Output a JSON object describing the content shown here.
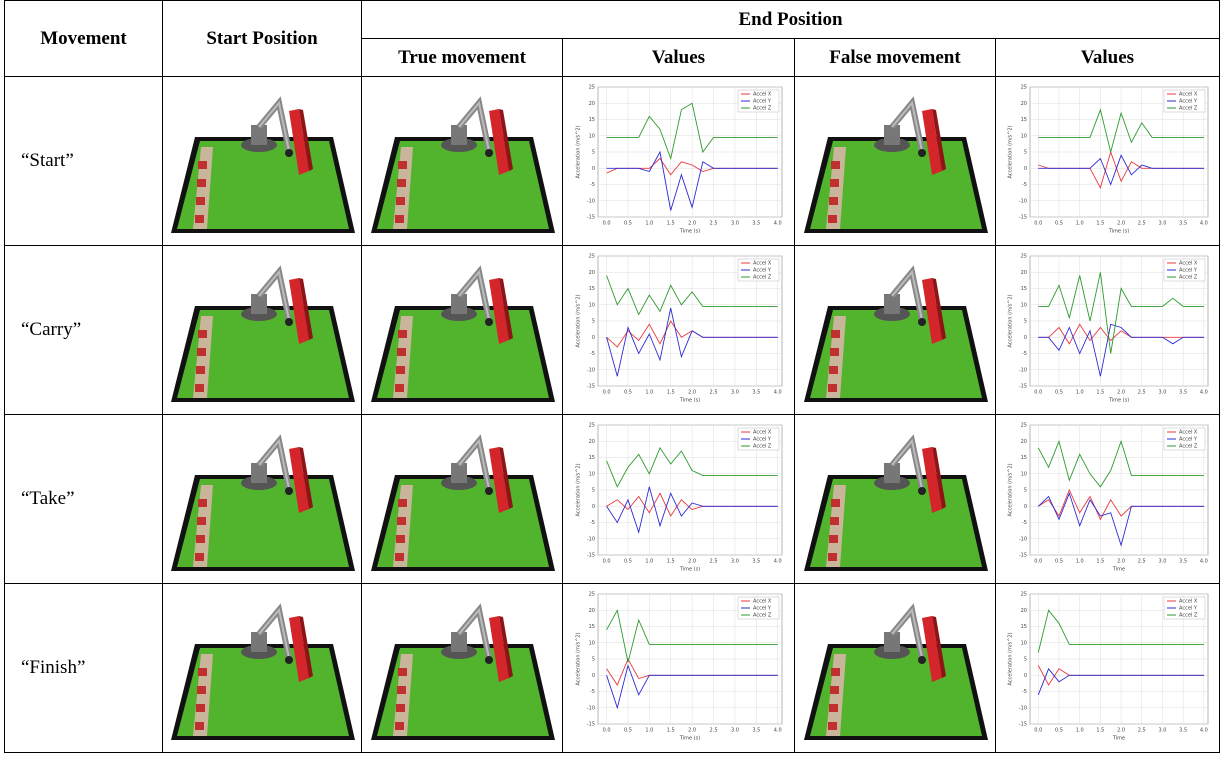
{
  "table": {
    "header": {
      "movement": "Movement",
      "start_position": "Start Position",
      "end_position": "End Position",
      "sub_columns": [
        "True movement",
        "Values",
        "False movement",
        "Values"
      ]
    },
    "chart_axes": {
      "x": [
        0,
        0.25,
        0.5,
        0.75,
        1,
        1.25,
        1.5,
        1.75,
        2,
        2.25,
        2.5,
        2.75,
        3,
        3.25,
        3.5,
        3.75,
        4
      ],
      "xlim": [
        -0.2,
        4.1
      ],
      "xticks": [
        {
          "value": 0,
          "label": "0.0"
        },
        {
          "value": 0.5,
          "label": "0.5"
        },
        {
          "value": 1,
          "label": "1.0"
        },
        {
          "value": 1.5,
          "label": "1.5"
        },
        {
          "value": 2,
          "label": "2.0"
        },
        {
          "value": 2.5,
          "label": "2.5"
        },
        {
          "value": 3,
          "label": "3.0"
        },
        {
          "value": 3.5,
          "label": "3.5"
        },
        {
          "value": 4,
          "label": "4.0"
        }
      ],
      "ylim": [
        -15,
        25
      ],
      "yticks": [
        -15,
        -10,
        -5,
        0,
        5,
        10,
        15,
        20,
        25
      ],
      "grid": true
    },
    "rows": [
      {
        "movement": "“Start”",
        "true_values": {
          "type": "line",
          "xlabel": "Time (s)",
          "ylabel": "Acceleration (m/s^2)",
          "series": [
            {
              "name": "Accel X",
              "color": "#e8383d",
              "values": [
                -1.5,
                0,
                0,
                0,
                0,
                3,
                -2,
                2,
                1,
                -1,
                0,
                0,
                0,
                0,
                0,
                0,
                0
              ]
            },
            {
              "name": "Accel Y",
              "color": "#2b2bd6",
              "values": [
                0,
                0,
                0,
                0,
                -1,
                5,
                -13,
                -2,
                -12,
                2,
                0,
                0,
                0,
                0,
                0,
                0,
                0
              ]
            },
            {
              "name": "Accel Z",
              "color": "#2e9a2e",
              "values": [
                9.5,
                9.5,
                9.5,
                9.5,
                16,
                12,
                3,
                18,
                20,
                5,
                9.5,
                9.5,
                9.5,
                9.5,
                9.5,
                9.5,
                9.5
              ]
            }
          ]
        },
        "false_values": {
          "type": "line",
          "xlabel": "Time (s)",
          "ylabel": "Acceleration (m/s^2)",
          "series": [
            {
              "name": "Accel X",
              "color": "#e8383d",
              "values": [
                1,
                0,
                0,
                0,
                0,
                0,
                -6,
                5,
                -4,
                2,
                0,
                0,
                0,
                0,
                0,
                0,
                0
              ]
            },
            {
              "name": "Accel Y",
              "color": "#2b2bd6",
              "values": [
                0,
                0,
                0,
                0,
                0,
                0,
                3,
                -5,
                4,
                -2,
                1,
                0,
                0,
                0,
                0,
                0,
                0
              ]
            },
            {
              "name": "Accel Z",
              "color": "#2e9a2e",
              "values": [
                9.5,
                9.5,
                9.5,
                9.5,
                9.5,
                9.5,
                18,
                5,
                17,
                8,
                14,
                9.5,
                9.5,
                9.5,
                9.5,
                9.5,
                9.5
              ]
            }
          ]
        }
      },
      {
        "movement": "“Carry”",
        "true_values": {
          "type": "line",
          "xlabel": "Time (s)",
          "ylabel": "Acceleration (m/s^2)",
          "series": [
            {
              "name": "Accel X",
              "color": "#e8383d",
              "values": [
                0,
                -3,
                2,
                -1,
                4,
                -2,
                5,
                0,
                2,
                0,
                0,
                0,
                0,
                0,
                0,
                0,
                0
              ]
            },
            {
              "name": "Accel Y",
              "color": "#2b2bd6",
              "values": [
                0,
                -12,
                3,
                -5,
                1,
                -7,
                9,
                -6,
                2,
                0,
                0,
                0,
                0,
                0,
                0,
                0,
                0
              ]
            },
            {
              "name": "Accel Z",
              "color": "#2e9a2e",
              "values": [
                19,
                10,
                15,
                7,
                13,
                8,
                16,
                10,
                14,
                9.5,
                9.5,
                9.5,
                9.5,
                9.5,
                9.5,
                9.5,
                9.5
              ]
            }
          ]
        },
        "false_values": {
          "type": "line",
          "xlabel": "Time (s)",
          "ylabel": "Acceleration (m/s^2)",
          "series": [
            {
              "name": "Accel X",
              "color": "#e8383d",
              "values": [
                0,
                0,
                3,
                -2,
                4,
                -1,
                3,
                -1,
                2,
                0,
                0,
                0,
                0,
                0,
                0,
                0,
                0
              ]
            },
            {
              "name": "Accel Y",
              "color": "#2b2bd6",
              "values": [
                0,
                0,
                -4,
                3,
                -5,
                2,
                -12,
                4,
                3,
                0,
                0,
                0,
                0,
                -2,
                0,
                0,
                0
              ]
            },
            {
              "name": "Accel Z",
              "color": "#2e9a2e",
              "values": [
                9.5,
                9.5,
                16,
                6,
                19,
                5,
                20,
                -5,
                15,
                9.5,
                9.5,
                9.5,
                9.5,
                12,
                9.5,
                9.5,
                9.5
              ]
            }
          ]
        }
      },
      {
        "movement": "“Take”",
        "true_values": {
          "type": "line",
          "xlabel": "Time (s)",
          "ylabel": "Acceleration (m/s^2)",
          "series": [
            {
              "name": "Accel X",
              "color": "#e8383d",
              "values": [
                0,
                2,
                -1,
                3,
                -2,
                4,
                -3,
                2,
                -1,
                0,
                0,
                0,
                0,
                0,
                0,
                0,
                0
              ]
            },
            {
              "name": "Accel Y",
              "color": "#2b2bd6",
              "values": [
                0,
                -5,
                2,
                -8,
                6,
                -6,
                4,
                -3,
                1,
                0,
                0,
                0,
                0,
                0,
                0,
                0,
                0
              ]
            },
            {
              "name": "Accel Z",
              "color": "#2e9a2e",
              "values": [
                14,
                6,
                12,
                16,
                10,
                18,
                13,
                17,
                11,
                9.5,
                9.5,
                9.5,
                9.5,
                9.5,
                9.5,
                9.5,
                9.5
              ]
            }
          ]
        },
        "false_values": {
          "type": "line",
          "xlabel": "Time",
          "ylabel": "Acceleration (m/s^2)",
          "series": [
            {
              "name": "Accel X",
              "color": "#e8383d",
              "values": [
                0,
                2,
                -3,
                5,
                -2,
                3,
                -4,
                2,
                -3,
                0,
                0,
                0,
                0,
                0,
                0,
                0,
                0
              ]
            },
            {
              "name": "Accel Y",
              "color": "#2b2bd6",
              "values": [
                0,
                3,
                -4,
                4,
                -6,
                2,
                -3,
                -2,
                -12,
                0,
                0,
                0,
                0,
                0,
                0,
                0,
                0
              ]
            },
            {
              "name": "Accel Z",
              "color": "#2e9a2e",
              "values": [
                18,
                12,
                20,
                8,
                16,
                10,
                6,
                11,
                20,
                9.5,
                9.5,
                9.5,
                9.5,
                9.5,
                9.5,
                9.5,
                9.5
              ]
            }
          ]
        }
      },
      {
        "movement": "“Finish”",
        "true_values": {
          "type": "line",
          "xlabel": "Time (s)",
          "ylabel": "Acceleration (m/s^2)",
          "series": [
            {
              "name": "Accel X",
              "color": "#e8383d",
              "values": [
                2,
                -3,
                5,
                -1,
                0,
                0,
                0,
                0,
                0,
                0,
                0,
                0,
                0,
                0,
                0,
                0,
                0
              ]
            },
            {
              "name": "Accel Y",
              "color": "#2b2bd6",
              "values": [
                0,
                -10,
                3,
                -6,
                0,
                0,
                0,
                0,
                0,
                0,
                0,
                0,
                0,
                0,
                0,
                0,
                0
              ]
            },
            {
              "name": "Accel Z",
              "color": "#2e9a2e",
              "values": [
                14,
                20,
                4,
                17,
                9.5,
                9.5,
                9.5,
                9.5,
                9.5,
                9.5,
                9.5,
                9.5,
                9.5,
                9.5,
                9.5,
                9.5,
                9.5
              ]
            }
          ]
        },
        "false_values": {
          "type": "line",
          "xlabel": "Time",
          "ylabel": "Acceleration (m/s^2)",
          "series": [
            {
              "name": "Accel X",
              "color": "#e8383d",
              "values": [
                3,
                -3,
                2,
                0,
                0,
                0,
                0,
                0,
                0,
                0,
                0,
                0,
                0,
                0,
                0,
                0,
                0
              ]
            },
            {
              "name": "Accel Y",
              "color": "#2b2bd6",
              "values": [
                -6,
                2,
                -2,
                0,
                0,
                0,
                0,
                0,
                0,
                0,
                0,
                0,
                0,
                0,
                0,
                0,
                0
              ]
            },
            {
              "name": "Accel Z",
              "color": "#2e9a2e",
              "values": [
                7,
                20,
                16,
                9.5,
                9.5,
                9.5,
                9.5,
                9.5,
                9.5,
                9.5,
                9.5,
                9.5,
                9.5,
                9.5,
                9.5,
                9.5,
                9.5
              ]
            }
          ]
        }
      }
    ]
  }
}
